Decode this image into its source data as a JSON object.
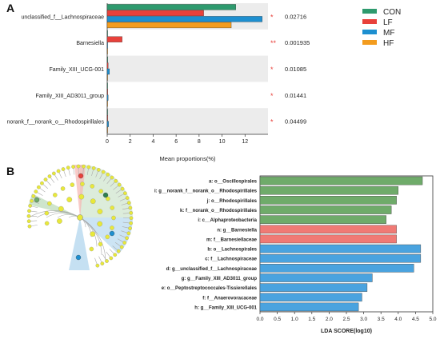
{
  "panels": {
    "a": "A",
    "b": "B"
  },
  "chart_data": [
    {
      "type": "bar",
      "orientation": "horizontal",
      "categories": [
        "unclassified_f__Lachnospiraceae",
        "Barnesiella",
        "Family_XIII_UCG-001",
        "Family_XIII_AD3011_group",
        "norank_f__norank_o__Rhodospirillales"
      ],
      "series": [
        {
          "name": "CON",
          "color": "#2e9a6e",
          "values": [
            11.2,
            0.0,
            0.05,
            0.03,
            0.02
          ]
        },
        {
          "name": "LF",
          "color": "#e8413b",
          "values": [
            8.4,
            1.3,
            0.08,
            0.05,
            0.05
          ]
        },
        {
          "name": "MF",
          "color": "#1d8fd0",
          "values": [
            13.5,
            0.0,
            0.2,
            0.08,
            0.12
          ]
        },
        {
          "name": "HF",
          "color": "#f39c1e",
          "values": [
            10.8,
            0.0,
            0.04,
            0.02,
            0.03
          ]
        }
      ],
      "significance": [
        "*",
        "**",
        "*",
        "*",
        "*"
      ],
      "p_values": [
        "0.02716",
        "0.001935",
        "0.01085",
        "0.01441",
        "0.04499"
      ],
      "xlabel": "Mean proportions(%)",
      "xlim": [
        0,
        14
      ],
      "xticks": [
        "0",
        "2",
        "4",
        "6",
        "8",
        "10",
        "12"
      ]
    },
    {
      "type": "bar",
      "orientation": "horizontal",
      "categories": [
        "a:  o__Oscillospirales",
        "i:  g__norank_f__norank_o__Rhodospirillales",
        "j:  o__Rhodospirillales",
        "k:  f__norank_o__Rhodospirillales",
        "i:  c__Alphaproteobacteria",
        "n:  g__Barnesiella",
        "m:  f__Barnesiellaceae",
        "b:  o__Lachnospirales",
        "c:  f__Lachnospiraceae",
        "d:  g__unclassified_f__Lachnospiraceae",
        "g:  g__Family_XIII_AD3011_group",
        "e:  o__Peptostreptococcales-Tissierellales",
        "f:  f__Anaerovoracaceae",
        "h:  g__Family_XIII_UCG-001"
      ],
      "values": [
        4.7,
        4.0,
        3.95,
        3.8,
        3.65,
        3.95,
        3.95,
        4.65,
        4.65,
        4.45,
        3.25,
        3.1,
        2.95,
        2.85
      ],
      "bar_colors": [
        "#6fab6a",
        "#6fab6a",
        "#6fab6a",
        "#6fab6a",
        "#6fab6a",
        "#f07a75",
        "#f07a75",
        "#4aa3df",
        "#4aa3df",
        "#4aa3df",
        "#4aa3df",
        "#4aa3df",
        "#4aa3df",
        "#4aa3df"
      ],
      "xlabel": "LDA SCORE(log10)",
      "xlim": [
        0,
        5
      ],
      "xticks": [
        "0.0",
        "0.5",
        "1.0",
        "1.5",
        "2.0",
        "2.5",
        "3.0",
        "3.5",
        "4.0",
        "4.5",
        "5.0"
      ]
    }
  ]
}
